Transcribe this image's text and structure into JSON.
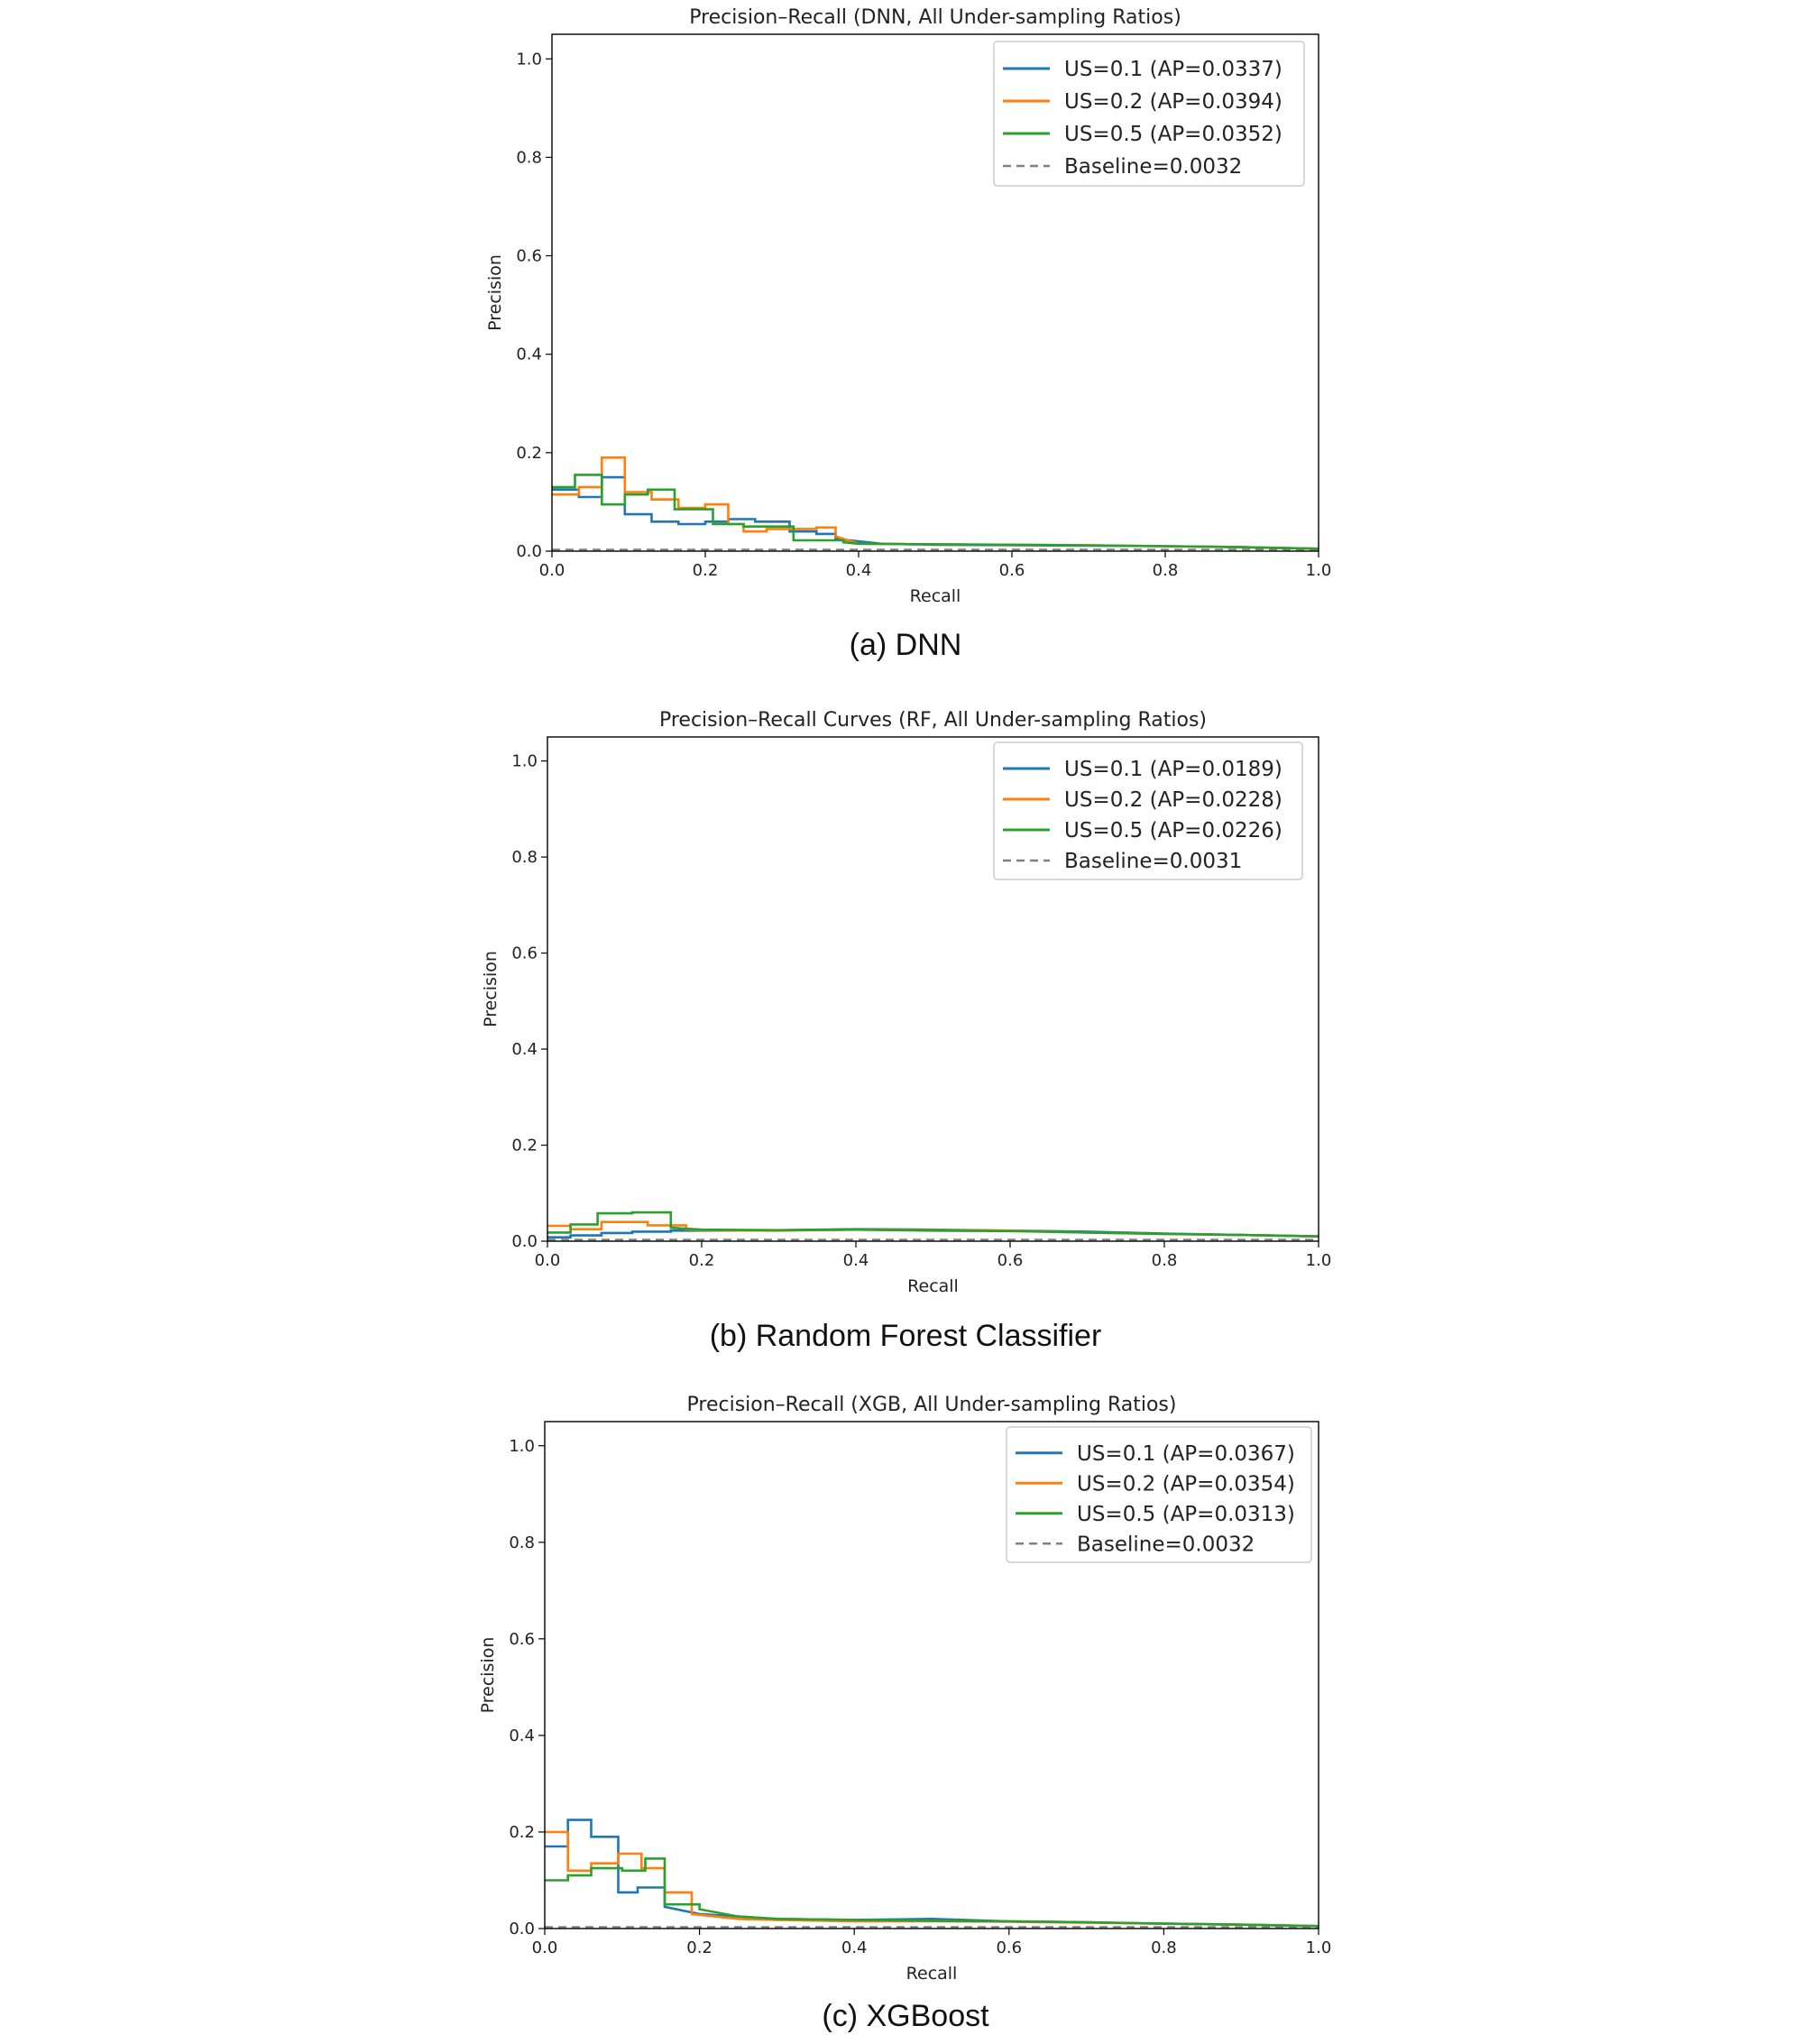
{
  "chart_data": [
    {
      "type": "line",
      "step": true,
      "title": "Precision–Recall (DNN, All Under-sampling Ratios)",
      "xlabel": "Recall",
      "ylabel": "Precision",
      "xlim": [
        0.0,
        1.0
      ],
      "ylim": [
        0.0,
        1.05
      ],
      "xticks": [
        "0.0",
        "0.2",
        "0.4",
        "0.6",
        "0.8",
        "1.0"
      ],
      "yticks": [
        "0.0",
        "0.2",
        "0.4",
        "0.6",
        "0.8",
        "1.0"
      ],
      "legend_position": "top-right",
      "caption": "(a) DNN",
      "series": [
        {
          "name": "US=0.1 (AP=0.0337)",
          "color": "#1f77b4",
          "x": [
            0,
            0.035,
            0.035,
            0.065,
            0.065,
            0.095,
            0.095,
            0.13,
            0.13,
            0.165,
            0.165,
            0.2,
            0.2,
            0.23,
            0.23,
            0.265,
            0.265,
            0.31,
            0.31,
            0.345,
            0.345,
            0.37,
            0.37,
            0.43,
            0.5,
            0.6,
            0.7,
            0.8,
            0.9,
            1.0
          ],
          "y": [
            0.125,
            0.125,
            0.11,
            0.11,
            0.15,
            0.15,
            0.075,
            0.075,
            0.06,
            0.06,
            0.055,
            0.055,
            0.06,
            0.06,
            0.065,
            0.065,
            0.06,
            0.06,
            0.04,
            0.04,
            0.035,
            0.035,
            0.025,
            0.015,
            0.013,
            0.012,
            0.011,
            0.01,
            0.008,
            0.005
          ]
        },
        {
          "name": "US=0.2 (AP=0.0394)",
          "color": "#ff7f0e",
          "x": [
            0,
            0.035,
            0.035,
            0.065,
            0.065,
            0.095,
            0.095,
            0.13,
            0.13,
            0.165,
            0.165,
            0.2,
            0.2,
            0.23,
            0.23,
            0.25,
            0.25,
            0.28,
            0.28,
            0.345,
            0.345,
            0.37,
            0.37,
            0.4,
            0.5,
            0.6,
            0.7,
            0.8,
            0.9,
            1.0
          ],
          "y": [
            0.115,
            0.115,
            0.13,
            0.13,
            0.19,
            0.19,
            0.12,
            0.12,
            0.105,
            0.105,
            0.088,
            0.088,
            0.095,
            0.095,
            0.055,
            0.055,
            0.04,
            0.04,
            0.045,
            0.045,
            0.048,
            0.048,
            0.03,
            0.015,
            0.014,
            0.013,
            0.012,
            0.01,
            0.008,
            0.005
          ]
        },
        {
          "name": "US=0.5 (AP=0.0352)",
          "color": "#2ca02c",
          "x": [
            0,
            0.03,
            0.03,
            0.065,
            0.065,
            0.095,
            0.095,
            0.125,
            0.125,
            0.16,
            0.16,
            0.21,
            0.21,
            0.25,
            0.25,
            0.315,
            0.315,
            0.38,
            0.38,
            0.4,
            0.5,
            0.6,
            0.7,
            0.8,
            0.9,
            1.0
          ],
          "y": [
            0.13,
            0.13,
            0.155,
            0.155,
            0.095,
            0.095,
            0.115,
            0.115,
            0.125,
            0.125,
            0.085,
            0.085,
            0.055,
            0.055,
            0.05,
            0.05,
            0.022,
            0.022,
            0.018,
            0.015,
            0.014,
            0.013,
            0.012,
            0.01,
            0.008,
            0.005
          ]
        },
        {
          "name": "Baseline=0.0032",
          "color": "#808080",
          "dashed": true,
          "x": [
            0,
            1
          ],
          "y": [
            0.0032,
            0.0032
          ]
        }
      ]
    },
    {
      "type": "line",
      "step": true,
      "title": "Precision–Recall Curves (RF, All Under-sampling Ratios)",
      "xlabel": "Recall",
      "ylabel": "Precision",
      "xlim": [
        0.0,
        1.0
      ],
      "ylim": [
        0.0,
        1.05
      ],
      "xticks": [
        "0.0",
        "0.2",
        "0.4",
        "0.6",
        "0.8",
        "1.0"
      ],
      "yticks": [
        "0.0",
        "0.2",
        "0.4",
        "0.6",
        "0.8",
        "1.0"
      ],
      "legend_position": "top-right",
      "caption": "(b) Random Forest Classifier",
      "series": [
        {
          "name": "US=0.1 (AP=0.0189)",
          "color": "#1f77b4",
          "x": [
            0,
            0.03,
            0.03,
            0.07,
            0.07,
            0.11,
            0.11,
            0.16,
            0.16,
            0.2,
            0.3,
            0.4,
            0.5,
            0.6,
            0.7,
            0.8,
            0.9,
            1.0
          ],
          "y": [
            0.008,
            0.008,
            0.012,
            0.012,
            0.017,
            0.017,
            0.02,
            0.02,
            0.022,
            0.022,
            0.023,
            0.025,
            0.024,
            0.022,
            0.02,
            0.016,
            0.013,
            0.01
          ]
        },
        {
          "name": "US=0.2 (AP=0.0228)",
          "color": "#ff7f0e",
          "x": [
            0,
            0.03,
            0.03,
            0.07,
            0.07,
            0.13,
            0.13,
            0.18,
            0.18,
            0.2,
            0.3,
            0.4,
            0.5,
            0.6,
            0.7,
            0.8,
            0.9,
            1.0
          ],
          "y": [
            0.032,
            0.032,
            0.025,
            0.025,
            0.04,
            0.04,
            0.033,
            0.033,
            0.025,
            0.023,
            0.022,
            0.024,
            0.023,
            0.022,
            0.018,
            0.015,
            0.013,
            0.01
          ]
        },
        {
          "name": "US=0.5 (AP=0.0226)",
          "color": "#2ca02c",
          "x": [
            0,
            0.03,
            0.03,
            0.065,
            0.065,
            0.11,
            0.11,
            0.16,
            0.16,
            0.2,
            0.3,
            0.4,
            0.5,
            0.6,
            0.7,
            0.8,
            0.9,
            1.0
          ],
          "y": [
            0.018,
            0.018,
            0.035,
            0.035,
            0.058,
            0.058,
            0.06,
            0.06,
            0.028,
            0.024,
            0.023,
            0.024,
            0.022,
            0.021,
            0.018,
            0.015,
            0.013,
            0.01
          ]
        },
        {
          "name": "Baseline=0.0031",
          "color": "#808080",
          "dashed": true,
          "x": [
            0,
            1
          ],
          "y": [
            0.0031,
            0.0031
          ]
        }
      ]
    },
    {
      "type": "line",
      "step": true,
      "title": "Precision–Recall (XGB, All Under-sampling Ratios)",
      "xlabel": "Recall",
      "ylabel": "Precision",
      "xlim": [
        0.0,
        1.0
      ],
      "ylim": [
        0.0,
        1.05
      ],
      "xticks": [
        "0.0",
        "0.2",
        "0.4",
        "0.6",
        "0.8",
        "1.0"
      ],
      "yticks": [
        "0.0",
        "0.2",
        "0.4",
        "0.6",
        "0.8",
        "1.0"
      ],
      "legend_position": "top-right",
      "caption": "(c) XGBoost",
      "series": [
        {
          "name": "US=0.1 (AP=0.0367)",
          "color": "#1f77b4",
          "x": [
            0,
            0.03,
            0.03,
            0.06,
            0.06,
            0.095,
            0.095,
            0.12,
            0.12,
            0.155,
            0.155,
            0.2,
            0.3,
            0.4,
            0.5,
            0.6,
            0.7,
            0.8,
            0.9,
            1.0
          ],
          "y": [
            0.17,
            0.17,
            0.225,
            0.225,
            0.19,
            0.19,
            0.075,
            0.075,
            0.085,
            0.085,
            0.045,
            0.03,
            0.02,
            0.018,
            0.02,
            0.015,
            0.013,
            0.01,
            0.008,
            0.005
          ]
        },
        {
          "name": "US=0.2 (AP=0.0354)",
          "color": "#ff7f0e",
          "x": [
            0,
            0.03,
            0.03,
            0.06,
            0.06,
            0.095,
            0.095,
            0.125,
            0.125,
            0.155,
            0.155,
            0.19,
            0.19,
            0.25,
            0.3,
            0.4,
            0.5,
            0.6,
            0.7,
            0.8,
            0.9,
            1.0
          ],
          "y": [
            0.2,
            0.2,
            0.12,
            0.12,
            0.135,
            0.135,
            0.155,
            0.155,
            0.125,
            0.125,
            0.075,
            0.075,
            0.03,
            0.02,
            0.018,
            0.015,
            0.015,
            0.014,
            0.012,
            0.01,
            0.008,
            0.005
          ]
        },
        {
          "name": "US=0.5 (AP=0.0313)",
          "color": "#2ca02c",
          "x": [
            0,
            0.03,
            0.03,
            0.06,
            0.06,
            0.1,
            0.1,
            0.13,
            0.13,
            0.155,
            0.155,
            0.2,
            0.2,
            0.25,
            0.3,
            0.4,
            0.5,
            0.6,
            0.7,
            0.8,
            0.9,
            1.0
          ],
          "y": [
            0.1,
            0.1,
            0.11,
            0.11,
            0.125,
            0.125,
            0.12,
            0.12,
            0.145,
            0.145,
            0.05,
            0.05,
            0.04,
            0.025,
            0.02,
            0.018,
            0.016,
            0.015,
            0.013,
            0.01,
            0.008,
            0.005
          ]
        },
        {
          "name": "Baseline=0.0032",
          "color": "#808080",
          "dashed": true,
          "x": [
            0,
            1
          ],
          "y": [
            0.0032,
            0.0032
          ]
        }
      ]
    }
  ]
}
